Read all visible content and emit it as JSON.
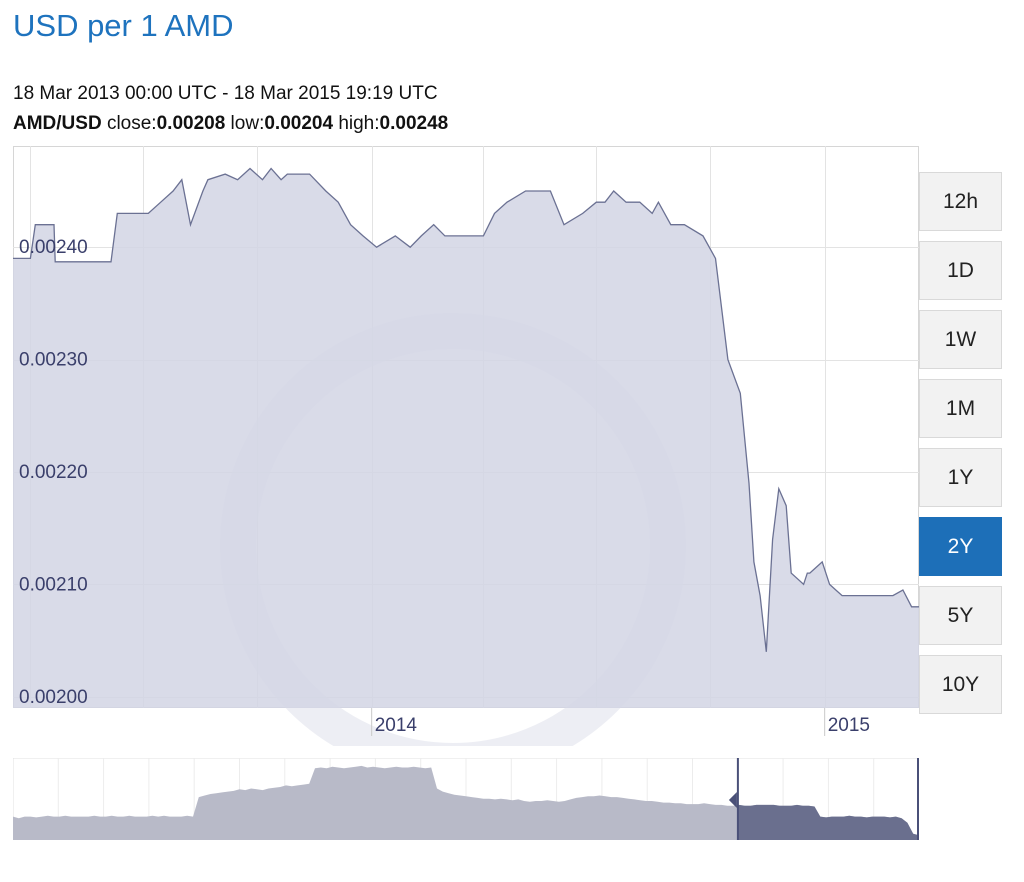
{
  "header": {
    "title": "USD per 1 AMD",
    "date_range": "18 Mar 2013 00:00 UTC - 18 Mar 2015 19:19 UTC",
    "pair": "AMD/USD",
    "close_label": " close:",
    "close_value": "0.00208",
    "low_label": " low:",
    "low_value": "0.00204",
    "high_label": " high:",
    "high_value": "0.00248"
  },
  "range_buttons": [
    {
      "label": "12h",
      "active": false
    },
    {
      "label": "1D",
      "active": false
    },
    {
      "label": "1W",
      "active": false
    },
    {
      "label": "1M",
      "active": false
    },
    {
      "label": "1Y",
      "active": false
    },
    {
      "label": "2Y",
      "active": true
    },
    {
      "label": "5Y",
      "active": false
    },
    {
      "label": "10Y",
      "active": false
    }
  ],
  "colors": {
    "area_fill": "#d2d5e4",
    "area_line": "#6b7193",
    "grid": "#e3e3e3",
    "axis_text": "#3a3f6b",
    "active_button": "#1d6fb8",
    "title": "#1e73be",
    "navigator_fill": "#b8bac8",
    "navigator_selected": "#6a6f8e"
  },
  "chart_data": {
    "type": "area",
    "x_start": "2013-03-18",
    "x_end": "2015-03-18",
    "ylim": [
      0.00199,
      0.00249
    ],
    "y_ticks": [
      "0.00200",
      "0.00210",
      "0.00220",
      "0.00230",
      "0.00240"
    ],
    "x_ticks": [
      "2014",
      "2015"
    ],
    "grid": true,
    "series": [
      {
        "x": [
          "2013-03-18",
          "2013-04-01",
          "2013-04-05",
          "2013-04-20",
          "2013-04-21",
          "2013-05-05",
          "2013-05-15",
          "2013-05-25",
          "2013-06-05",
          "2013-06-10",
          "2013-06-25",
          "2013-07-05",
          "2013-07-15",
          "2013-07-25",
          "2013-08-01",
          "2013-08-08",
          "2013-08-18",
          "2013-08-22",
          "2013-09-05",
          "2013-09-15",
          "2013-09-25",
          "2013-10-05",
          "2013-10-12",
          "2013-10-20",
          "2013-10-25",
          "2013-11-05",
          "2013-11-12",
          "2013-11-25",
          "2013-12-05",
          "2013-12-15",
          "2013-12-25",
          "2014-01-05",
          "2014-01-20",
          "2014-02-01",
          "2014-02-10",
          "2014-02-20",
          "2014-03-01",
          "2014-03-10",
          "2014-03-20",
          "2014-04-01",
          "2014-04-10",
          "2014-04-20",
          "2014-05-05",
          "2014-05-15",
          "2014-05-25",
          "2014-06-05",
          "2014-06-20",
          "2014-07-01",
          "2014-07-08",
          "2014-07-15",
          "2014-07-25",
          "2014-08-05",
          "2014-08-15",
          "2014-08-20",
          "2014-08-30",
          "2014-09-10",
          "2014-09-25",
          "2014-10-05",
          "2014-10-15",
          "2014-10-25",
          "2014-11-01",
          "2014-11-05",
          "2014-11-10",
          "2014-11-15",
          "2014-11-20",
          "2014-11-25",
          "2014-12-01",
          "2014-12-05",
          "2014-12-10",
          "2014-12-15",
          "2014-12-18",
          "2014-12-20",
          "2014-12-25",
          "2014-12-30",
          "2015-01-05",
          "2015-01-10",
          "2015-01-15",
          "2015-01-25",
          "2015-02-05",
          "2015-02-15",
          "2015-02-25",
          "2015-03-05",
          "2015-03-12",
          "2015-03-18"
        ],
        "y": [
          0.00239,
          0.00239,
          0.00242,
          0.00242,
          0.002387,
          0.002387,
          0.002387,
          0.002387,
          0.002387,
          0.00243,
          0.00243,
          0.00243,
          0.00244,
          0.00245,
          0.00246,
          0.00242,
          0.00245,
          0.00246,
          0.002465,
          0.00246,
          0.00247,
          0.00246,
          0.00247,
          0.00246,
          0.002465,
          0.002465,
          0.002465,
          0.00245,
          0.00244,
          0.00242,
          0.00241,
          0.0024,
          0.00241,
          0.0024,
          0.00241,
          0.00242,
          0.00241,
          0.00241,
          0.00241,
          0.00241,
          0.00243,
          0.00244,
          0.00245,
          0.00245,
          0.00245,
          0.00242,
          0.00243,
          0.00244,
          0.00244,
          0.00245,
          0.00244,
          0.00244,
          0.00243,
          0.00244,
          0.00242,
          0.00242,
          0.00241,
          0.00239,
          0.0023,
          0.00227,
          0.00219,
          0.00212,
          0.00209,
          0.00204,
          0.00214,
          0.002185,
          0.00217,
          0.00211,
          0.002105,
          0.0021,
          0.00211,
          0.00211,
          0.002115,
          0.00212,
          0.0021,
          0.002095,
          0.00209,
          0.00209,
          0.00209,
          0.00209,
          0.00209,
          0.002095,
          0.00208,
          0.00208
        ]
      }
    ]
  },
  "navigator": {
    "x_start": "2005-03-18",
    "x_end": "2015-03-18",
    "selected_start": "2013-03-18",
    "selected_end": "2015-03-18",
    "values": [
      0.3,
      0.28,
      0.3,
      0.3,
      0.29,
      0.3,
      0.31,
      0.3,
      0.3,
      0.31,
      0.3,
      0.3,
      0.3,
      0.3,
      0.31,
      0.3,
      0.3,
      0.31,
      0.3,
      0.3,
      0.31,
      0.3,
      0.3,
      0.3,
      0.31,
      0.3,
      0.31,
      0.3,
      0.3,
      0.3,
      0.31,
      0.3,
      0.55,
      0.57,
      0.59,
      0.6,
      0.61,
      0.62,
      0.63,
      0.65,
      0.64,
      0.66,
      0.65,
      0.64,
      0.66,
      0.67,
      0.68,
      0.7,
      0.69,
      0.7,
      0.71,
      0.72,
      0.92,
      0.93,
      0.92,
      0.94,
      0.93,
      0.92,
      0.93,
      0.94,
      0.95,
      0.93,
      0.94,
      0.93,
      0.92,
      0.93,
      0.94,
      0.93,
      0.93,
      0.94,
      0.93,
      0.92,
      0.93,
      0.66,
      0.62,
      0.6,
      0.58,
      0.57,
      0.56,
      0.55,
      0.54,
      0.53,
      0.53,
      0.52,
      0.53,
      0.52,
      0.51,
      0.52,
      0.5,
      0.49,
      0.5,
      0.5,
      0.51,
      0.5,
      0.49,
      0.5,
      0.52,
      0.54,
      0.55,
      0.56,
      0.56,
      0.57,
      0.56,
      0.55,
      0.55,
      0.54,
      0.53,
      0.52,
      0.51,
      0.5,
      0.5,
      0.49,
      0.48,
      0.48,
      0.47,
      0.47,
      0.46,
      0.46,
      0.46,
      0.47,
      0.46,
      0.45,
      0.45,
      0.44,
      0.44,
      0.45,
      0.44,
      0.44,
      0.45,
      0.45,
      0.45,
      0.45,
      0.44,
      0.44,
      0.44,
      0.45,
      0.44,
      0.44,
      0.43,
      0.3,
      0.29,
      0.3,
      0.3,
      0.3,
      0.31,
      0.3,
      0.3,
      0.29,
      0.3,
      0.3,
      0.3,
      0.29,
      0.3,
      0.28,
      0.22,
      0.08,
      0.06
    ]
  }
}
